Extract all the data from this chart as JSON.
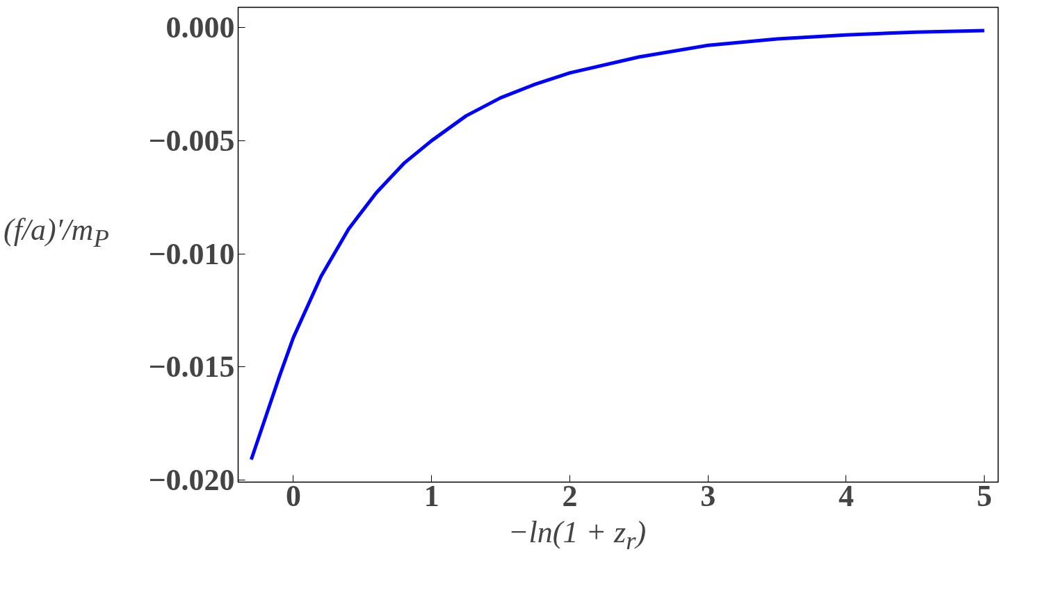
{
  "chart_data": {
    "type": "line",
    "xlabel": "−ln(1 + z$_{r}$)",
    "ylabel": "(f/a)′/m$_{P}$",
    "x": [
      -0.305,
      -0.2,
      -0.1,
      0,
      0.2,
      0.4,
      0.6,
      0.8,
      1,
      1.25,
      1.5,
      1.75,
      2,
      2.5,
      3,
      3.5,
      4,
      4.5,
      5
    ],
    "series": [
      {
        "color": "#0000ff",
        "values": [
          -0.0191,
          -0.0172,
          -0.0154,
          -0.0137,
          -0.011,
          -0.0089,
          -0.0073,
          -0.006,
          -0.005,
          -0.0039,
          -0.0031,
          -0.0025,
          -0.002,
          -0.0013,
          -0.00078,
          -0.0005,
          -0.00032,
          -0.0002,
          -0.00013
        ]
      }
    ],
    "xlim": [
      -0.4,
      5.1
    ],
    "ylim": [
      -0.0201,
      0.0009
    ],
    "xticks": [
      0,
      1,
      2,
      3,
      4,
      5
    ],
    "yticks": [
      {
        "value": 0,
        "label": "0.000"
      },
      {
        "value": -0.005,
        "label": "−0.005"
      },
      {
        "value": -0.01,
        "label": "−0.010"
      },
      {
        "value": -0.015,
        "label": "−0.015"
      },
      {
        "value": -0.02,
        "label": "−0.020"
      }
    ],
    "grid": false,
    "line_style": "solid",
    "marker": "none"
  }
}
